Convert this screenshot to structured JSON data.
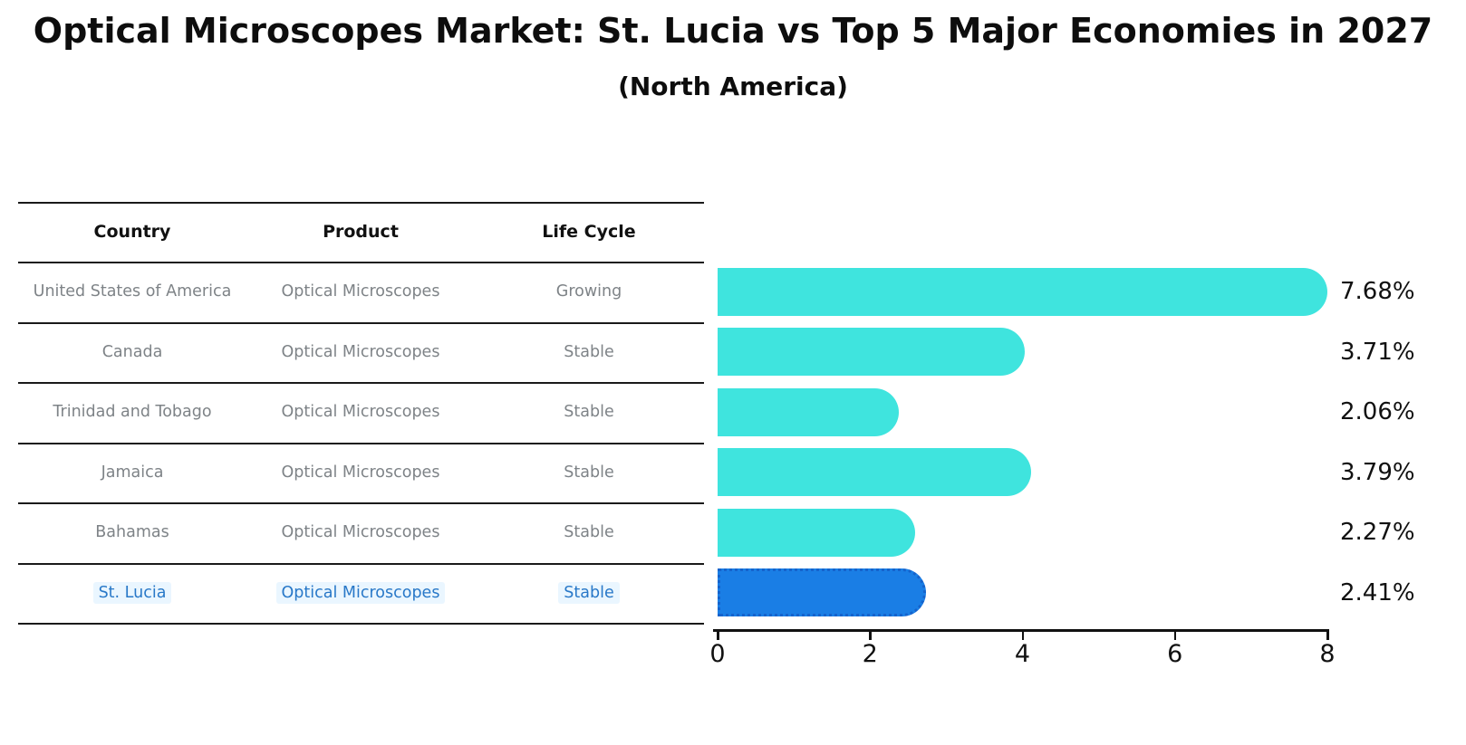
{
  "title": "Optical Microscopes Market: St. Lucia vs Top 5 Major Economies in 2027",
  "subtitle": "(North America)",
  "table": {
    "headers": [
      "Country",
      "Product",
      "Life Cycle"
    ],
    "rows": [
      {
        "country": "United States of America",
        "product": "Optical Microscopes",
        "life_cycle": "Growing",
        "highlighted": false
      },
      {
        "country": "Canada",
        "product": "Optical Microscopes",
        "life_cycle": "Stable",
        "highlighted": false
      },
      {
        "country": "Trinidad and Tobago",
        "product": "Optical Microscopes",
        "life_cycle": "Stable",
        "highlighted": false
      },
      {
        "country": "Jamaica",
        "product": "Optical Microscopes",
        "life_cycle": "Stable",
        "highlighted": false
      },
      {
        "country": "Bahamas",
        "product": "Optical Microscopes",
        "life_cycle": "Stable",
        "highlighted": false
      },
      {
        "country": "St. Lucia",
        "product": "Optical Microscopes",
        "life_cycle": "Stable",
        "highlighted": true
      }
    ]
  },
  "chart_data": {
    "type": "bar",
    "orientation": "horizontal",
    "title": "Optical Microscopes Market: St. Lucia vs Top 5 Major Economies in 2027 (North America)",
    "categories": [
      "United States of America",
      "Canada",
      "Trinidad and Tobago",
      "Jamaica",
      "Bahamas",
      "St. Lucia"
    ],
    "values": [
      7.68,
      3.71,
      2.06,
      3.79,
      2.27,
      2.41
    ],
    "value_labels": [
      "7.68%",
      "3.71%",
      "2.06%",
      "3.79%",
      "2.27%",
      "2.41%"
    ],
    "xlabel": "",
    "ylabel": "",
    "xlim": [
      0,
      8
    ],
    "xticks": [
      0,
      2,
      4,
      6,
      8
    ],
    "grid": false,
    "legend": false,
    "bar_color": "#3FE4DE",
    "highlight_index": 5,
    "highlight_bar_color": "#1A7EE5",
    "highlight_border_color": "#1563CC"
  },
  "colors": {
    "row_text": "#7E8387",
    "highlight_text": "#2878C8",
    "highlight_text_bg": "rgba(160,215,255,0.22)",
    "table_line": "#1A1A1A"
  }
}
